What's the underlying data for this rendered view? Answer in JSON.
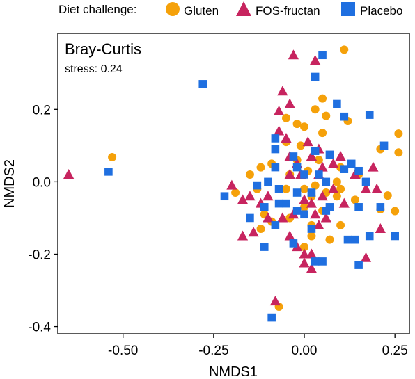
{
  "chart_data": {
    "type": "scatter",
    "title": "Bray-Curtis",
    "subtitle": "stress: 0.24",
    "xlabel": "NMDS1",
    "ylabel": "NMDS2",
    "xlim": [
      -0.68,
      0.29
    ],
    "ylim": [
      -0.42,
      0.41
    ],
    "xticks": [
      -0.5,
      -0.25,
      0.0,
      0.25
    ],
    "xtick_labels": [
      "-0.50",
      "-0.25",
      "0.00",
      "0.25"
    ],
    "yticks": [
      -0.4,
      -0.2,
      0.0,
      0.2
    ],
    "ytick_labels": [
      "-0.4",
      "-0.2",
      "0.0",
      "0.2"
    ],
    "grid": false,
    "legend": {
      "title": "Diet challenge:",
      "placement": "top"
    },
    "series": [
      {
        "name": "Gluten",
        "marker": "circle",
        "color": "#F5A10A",
        "points": [
          [
            -0.53,
            0.068
          ],
          [
            0.11,
            0.365
          ],
          [
            -0.05,
            0.176
          ],
          [
            -0.02,
            0.16
          ],
          [
            0.03,
            0.2
          ],
          [
            0.06,
            0.182
          ],
          [
            0.0,
            0.152
          ],
          [
            0.05,
            0.135
          ],
          [
            0.12,
            0.168
          ],
          [
            -0.12,
            0.04
          ],
          [
            -0.09,
            0.05
          ],
          [
            -0.04,
            0.02
          ],
          [
            0.01,
            0.03
          ],
          [
            0.03,
            -0.01
          ],
          [
            0.06,
            -0.03
          ],
          [
            0.1,
            0.04
          ],
          [
            0.15,
            0.02
          ],
          [
            0.21,
            0.09
          ],
          [
            0.26,
            0.133
          ],
          [
            0.26,
            0.081
          ],
          [
            0.23,
            -0.038
          ],
          [
            0.21,
            -0.076
          ],
          [
            0.25,
            -0.081
          ],
          [
            0.09,
            0.0
          ],
          [
            0.09,
            -0.04
          ],
          [
            0.05,
            -0.08
          ],
          [
            -0.04,
            -0.1
          ],
          [
            -0.09,
            -0.11
          ],
          [
            -0.11,
            -0.09
          ],
          [
            -0.13,
            -0.02
          ],
          [
            -0.15,
            0.02
          ],
          [
            -0.19,
            -0.03
          ],
          [
            0.0,
            -0.07
          ],
          [
            0.02,
            -0.12
          ],
          [
            0.02,
            -0.15
          ],
          [
            0.1,
            -0.12
          ],
          [
            0.05,
            0.23
          ],
          [
            0.07,
            -0.16
          ],
          [
            0.0,
            -0.18
          ],
          [
            -0.05,
            -0.02
          ],
          [
            -0.02,
            0.06
          ],
          [
            0.04,
            0.06
          ],
          [
            -0.0,
            -0.02
          ],
          [
            0.1,
            -0.02
          ],
          [
            -0.01,
            0.1
          ],
          [
            -0.05,
            0.11
          ],
          [
            0.02,
            -0.04
          ],
          [
            -0.07,
            -0.345
          ],
          [
            -0.12,
            -0.13
          ],
          [
            0.14,
            -0.05
          ]
        ]
      },
      {
        "name": "FOS-fructan",
        "marker": "triangle",
        "color": "#C7245F",
        "points": [
          [
            -0.65,
            0.02
          ],
          [
            -0.03,
            0.35
          ],
          [
            0.03,
            0.335
          ],
          [
            -0.06,
            0.25
          ],
          [
            -0.07,
            0.195
          ],
          [
            -0.04,
            0.215
          ],
          [
            -0.07,
            0.14
          ],
          [
            -0.05,
            0.12
          ],
          [
            0.01,
            0.11
          ],
          [
            0.04,
            0.09
          ],
          [
            -0.02,
            0.05
          ],
          [
            -0.04,
            0.07
          ],
          [
            0.02,
            0.07
          ],
          [
            0.05,
            0.04
          ],
          [
            -0.01,
            0.02
          ],
          [
            0.04,
            0.02
          ],
          [
            0.08,
            0.05
          ],
          [
            0.1,
            0.07
          ],
          [
            0.19,
            0.04
          ],
          [
            0.14,
            0.02
          ],
          [
            0.17,
            -0.02
          ],
          [
            0.2,
            -0.02
          ],
          [
            0.21,
            -0.13
          ],
          [
            0.11,
            -0.06
          ],
          [
            0.08,
            -0.02
          ],
          [
            0.05,
            -0.04
          ],
          [
            0.02,
            -0.06
          ],
          [
            0.03,
            -0.09
          ],
          [
            0.06,
            -0.1
          ],
          [
            -0.03,
            -0.09
          ],
          [
            -0.06,
            -0.1
          ],
          [
            -0.1,
            -0.1
          ],
          [
            -0.12,
            -0.06
          ],
          [
            -0.1,
            -0.04
          ],
          [
            -0.15,
            -0.04
          ],
          [
            -0.17,
            -0.05
          ],
          [
            -0.2,
            -0.01
          ],
          [
            -0.14,
            -0.14
          ],
          [
            -0.17,
            -0.15
          ],
          [
            -0.04,
            -0.15
          ],
          [
            -0.02,
            -0.18
          ],
          [
            0.0,
            -0.2
          ],
          [
            0.02,
            -0.2
          ],
          [
            0.0,
            -0.225
          ],
          [
            0.02,
            -0.24
          ],
          [
            0.17,
            -0.21
          ],
          [
            0.04,
            -0.12
          ],
          [
            -0.08,
            -0.33
          ],
          [
            0.0,
            -0.05
          ],
          [
            -0.04,
            0.02
          ]
        ]
      },
      {
        "name": "Placebo",
        "marker": "square",
        "color": "#1F6FE0",
        "points": [
          [
            -0.54,
            0.028
          ],
          [
            -0.28,
            0.27
          ],
          [
            0.05,
            0.35
          ],
          [
            0.03,
            0.29
          ],
          [
            0.09,
            0.215
          ],
          [
            0.11,
            0.18
          ],
          [
            0.18,
            0.185
          ],
          [
            -0.08,
            0.12
          ],
          [
            0.03,
            0.085
          ],
          [
            0.07,
            0.075
          ],
          [
            0.11,
            0.035
          ],
          [
            0.15,
            0.03
          ],
          [
            0.22,
            0.1
          ],
          [
            -0.08,
            0.09
          ],
          [
            -0.08,
            0.04
          ],
          [
            -0.02,
            0.04
          ],
          [
            0.0,
            0.02
          ],
          [
            0.04,
            0.02
          ],
          [
            0.06,
            0.0
          ],
          [
            0.13,
            0.05
          ],
          [
            0.17,
            0.0
          ],
          [
            0.15,
            -0.07
          ],
          [
            0.21,
            -0.07
          ],
          [
            0.25,
            -0.15
          ],
          [
            0.18,
            -0.15
          ],
          [
            0.14,
            -0.16
          ],
          [
            0.12,
            -0.16
          ],
          [
            0.06,
            -0.08
          ],
          [
            0.02,
            -0.03
          ],
          [
            -0.02,
            -0.03
          ],
          [
            -0.07,
            -0.02
          ],
          [
            -0.1,
            0.0
          ],
          [
            -0.13,
            -0.01
          ],
          [
            -0.22,
            -0.04
          ],
          [
            -0.11,
            -0.07
          ],
          [
            -0.07,
            -0.06
          ],
          [
            -0.05,
            -0.06
          ],
          [
            -0.02,
            -0.08
          ],
          [
            0.0,
            -0.09
          ],
          [
            -0.15,
            -0.1
          ],
          [
            -0.08,
            -0.12
          ],
          [
            -0.11,
            -0.18
          ],
          [
            0.02,
            -0.13
          ],
          [
            -0.03,
            -0.17
          ],
          [
            0.03,
            -0.22
          ],
          [
            0.05,
            -0.22
          ],
          [
            0.15,
            -0.23
          ],
          [
            -0.09,
            -0.375
          ],
          [
            0.07,
            -0.07
          ],
          [
            -0.03,
            0.07
          ]
        ]
      }
    ]
  }
}
